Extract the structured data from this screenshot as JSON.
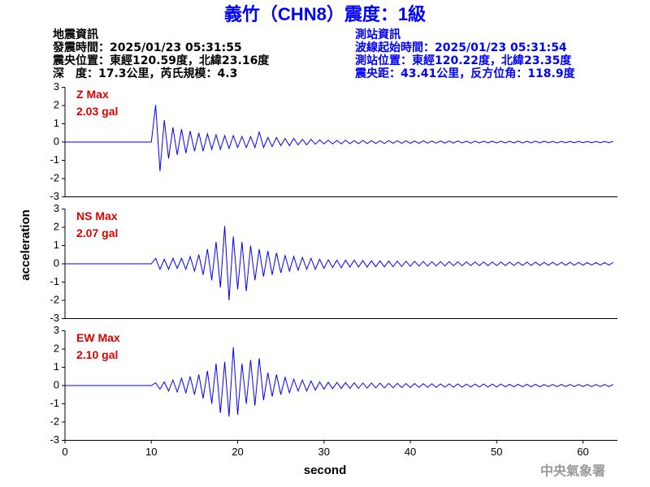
{
  "header": {
    "title": "義竹（CHN8）震度：1級",
    "left_info": [
      "地震資訊",
      "發震時間：2025/01/23 05:31:55",
      "震央位置：東經120.59度，北緯23.16度",
      "深　度：17.3公里，芮氏規模：4.3"
    ],
    "right_info": [
      "測站資訊",
      "波線起始時間：2025/01/23 05:31:54",
      "測站位置：東經120.22度，北緯23.35度",
      "震央距：43.41公里，反方位角：118.9度"
    ]
  },
  "axes": {
    "xlabel": "second",
    "ylabel": "acceleration"
  },
  "footer": "中央氣象署",
  "chart_data": [
    {
      "type": "line",
      "annotations": [
        "Z Max",
        "2.03 gal"
      ],
      "annotation_color": "#e00000",
      "color": "#0000ff",
      "xlim": [
        0,
        64
      ],
      "ylim": [
        -3,
        3
      ],
      "yticks": [
        -3,
        -2,
        -1,
        0,
        1,
        2,
        3
      ],
      "x": [
        0,
        0.5,
        1,
        1.5,
        2,
        2.5,
        3,
        3.5,
        4,
        4.5,
        5,
        5.5,
        6,
        6.5,
        7,
        7.5,
        8,
        8.5,
        9,
        9.5,
        10,
        10.5,
        11,
        11.5,
        12,
        12.5,
        13,
        13.5,
        14,
        14.5,
        15,
        15.5,
        16,
        16.5,
        17,
        17.5,
        18,
        18.5,
        19,
        19.5,
        20,
        20.5,
        21,
        21.5,
        22,
        22.5,
        23,
        23.5,
        24,
        24.5,
        25,
        25.5,
        26,
        26.5,
        27,
        27.5,
        28,
        28.5,
        29,
        29.5,
        30,
        30.5,
        31,
        31.5,
        32,
        32.5,
        33,
        33.5,
        34,
        34.5,
        35,
        35.5,
        36,
        36.5,
        37,
        37.5,
        38,
        38.5,
        39,
        39.5,
        40,
        40.5,
        41,
        41.5,
        42,
        42.5,
        43,
        43.5,
        44,
        44.5,
        45,
        45.5,
        46,
        46.5,
        47,
        47.5,
        48,
        48.5,
        49,
        49.5,
        50,
        50.5,
        51,
        51.5,
        52,
        52.5,
        53,
        53.5,
        54,
        54.5,
        55,
        55.5,
        56,
        56.5,
        57,
        57.5,
        58,
        58.5,
        59,
        59.5,
        60,
        60.5,
        61,
        61.5,
        62,
        62.5,
        63,
        63.5
      ],
      "values": [
        0,
        0,
        0,
        0,
        0,
        0,
        0,
        0,
        0,
        0,
        0,
        0,
        0,
        0,
        0,
        0,
        0,
        0,
        0,
        0,
        0,
        2.03,
        -1.6,
        1.2,
        -0.9,
        0.8,
        -0.7,
        0.7,
        -0.6,
        0.6,
        -0.5,
        0.5,
        -0.5,
        0.45,
        -0.4,
        0.4,
        -0.4,
        0.35,
        -0.35,
        0.35,
        -0.3,
        0.3,
        -0.3,
        0.3,
        -0.3,
        0.55,
        -0.3,
        0.25,
        -0.25,
        0.25,
        -0.2,
        0.2,
        -0.2,
        0.2,
        -0.15,
        0.15,
        -0.15,
        0.15,
        -0.12,
        0.12,
        -0.1,
        0.1,
        -0.1,
        0.09,
        -0.1,
        0.1,
        -0.09,
        0.08,
        -0.09,
        0.09,
        -0.08,
        0.08,
        -0.08,
        0.07,
        -0.08,
        0.08,
        -0.07,
        0.07,
        -0.07,
        0.07,
        -0.07,
        0.06,
        -0.07,
        0.07,
        -0.06,
        0.06,
        -0.06,
        0.06,
        -0.06,
        0.06,
        -0.06,
        0.06,
        -0.05,
        0.05,
        -0.06,
        0.05,
        -0.05,
        0.05,
        -0.05,
        0.05,
        -0.05,
        0.05,
        -0.05,
        0.05,
        -0.05,
        0.05,
        -0.05,
        0.05,
        -0.05,
        0.05,
        -0.05,
        0.05,
        -0.04,
        0.04,
        -0.05,
        0.04,
        -0.04,
        0.04,
        -0.04,
        0.04,
        -0.04,
        0.04,
        -0.04,
        0.04,
        -0.04,
        0.04,
        -0.04,
        0.04
      ]
    },
    {
      "type": "line",
      "annotations": [
        "NS Max",
        "2.07 gal"
      ],
      "annotation_color": "#e00000",
      "color": "#0000ff",
      "xlim": [
        0,
        64
      ],
      "ylim": [
        -3,
        3
      ],
      "yticks": [
        -3,
        -2,
        -1,
        0,
        1,
        2,
        3
      ],
      "x": [
        0,
        0.5,
        1,
        1.5,
        2,
        2.5,
        3,
        3.5,
        4,
        4.5,
        5,
        5.5,
        6,
        6.5,
        7,
        7.5,
        8,
        8.5,
        9,
        9.5,
        10,
        10.5,
        11,
        11.5,
        12,
        12.5,
        13,
        13.5,
        14,
        14.5,
        15,
        15.5,
        16,
        16.5,
        17,
        17.5,
        18,
        18.5,
        19,
        19.5,
        20,
        20.5,
        21,
        21.5,
        22,
        22.5,
        23,
        23.5,
        24,
        24.5,
        25,
        25.5,
        26,
        26.5,
        27,
        27.5,
        28,
        28.5,
        29,
        29.5,
        30,
        30.5,
        31,
        31.5,
        32,
        32.5,
        33,
        33.5,
        34,
        34.5,
        35,
        35.5,
        36,
        36.5,
        37,
        37.5,
        38,
        38.5,
        39,
        39.5,
        40,
        40.5,
        41,
        41.5,
        42,
        42.5,
        43,
        43.5,
        44,
        44.5,
        45,
        45.5,
        46,
        46.5,
        47,
        47.5,
        48,
        48.5,
        49,
        49.5,
        50,
        50.5,
        51,
        51.5,
        52,
        52.5,
        53,
        53.5,
        54,
        54.5,
        55,
        55.5,
        56,
        56.5,
        57,
        57.5,
        58,
        58.5,
        59,
        59.5,
        60,
        60.5,
        61,
        61.5,
        62,
        62.5,
        63,
        63.5
      ],
      "values": [
        0,
        0,
        0,
        0,
        0,
        0,
        0,
        0,
        0,
        0,
        0,
        0,
        0,
        0,
        0,
        0,
        0,
        0,
        0,
        0,
        0,
        0.3,
        -0.3,
        0.25,
        -0.3,
        0.3,
        -0.25,
        0.3,
        -0.3,
        0.4,
        -0.4,
        0.5,
        -0.6,
        0.8,
        -0.9,
        1.2,
        -1.3,
        2.07,
        -2.0,
        1.5,
        -1.4,
        1.2,
        -1.5,
        1.0,
        -0.9,
        0.8,
        -0.7,
        0.7,
        -0.6,
        0.6,
        -0.5,
        0.45,
        -0.4,
        0.4,
        -0.35,
        0.35,
        -0.3,
        0.3,
        -0.3,
        0.25,
        -0.25,
        0.22,
        -0.2,
        0.2,
        -0.22,
        0.2,
        -0.18,
        0.2,
        -0.18,
        0.18,
        -0.18,
        0.17,
        -0.16,
        0.16,
        -0.17,
        0.15,
        -0.15,
        0.15,
        -0.15,
        0.14,
        -0.14,
        0.14,
        -0.13,
        0.13,
        -0.13,
        0.12,
        -0.12,
        0.12,
        -0.12,
        0.12,
        -0.11,
        0.11,
        -0.11,
        0.11,
        -0.1,
        0.1,
        -0.1,
        0.1,
        -0.1,
        0.1,
        -0.1,
        0.1,
        -0.1,
        0.09,
        -0.09,
        0.09,
        -0.09,
        0.09,
        -0.09,
        0.09,
        -0.09,
        0.08,
        -0.08,
        0.08,
        -0.08,
        0.08,
        -0.08,
        0.08,
        -0.08,
        0.08,
        -0.08,
        0.07,
        -0.07,
        0.07,
        -0.07,
        0.07,
        -0.07,
        0.07
      ]
    },
    {
      "type": "line",
      "annotations": [
        "EW Max",
        "2.10 gal"
      ],
      "annotation_color": "#e00000",
      "color": "#0000ff",
      "xlim": [
        0,
        64
      ],
      "xticks": [
        0,
        10,
        20,
        30,
        40,
        50,
        60
      ],
      "ylim": [
        -3,
        3
      ],
      "yticks": [
        -3,
        -2,
        -1,
        0,
        1,
        2,
        3
      ],
      "x": [
        0,
        0.5,
        1,
        1.5,
        2,
        2.5,
        3,
        3.5,
        4,
        4.5,
        5,
        5.5,
        6,
        6.5,
        7,
        7.5,
        8,
        8.5,
        9,
        9.5,
        10,
        10.5,
        11,
        11.5,
        12,
        12.5,
        13,
        13.5,
        14,
        14.5,
        15,
        15.5,
        16,
        16.5,
        17,
        17.5,
        18,
        18.5,
        19,
        19.5,
        20,
        20.5,
        21,
        21.5,
        22,
        22.5,
        23,
        23.5,
        24,
        24.5,
        25,
        25.5,
        26,
        26.5,
        27,
        27.5,
        28,
        28.5,
        29,
        29.5,
        30,
        30.5,
        31,
        31.5,
        32,
        32.5,
        33,
        33.5,
        34,
        34.5,
        35,
        35.5,
        36,
        36.5,
        37,
        37.5,
        38,
        38.5,
        39,
        39.5,
        40,
        40.5,
        41,
        41.5,
        42,
        42.5,
        43,
        43.5,
        44,
        44.5,
        45,
        45.5,
        46,
        46.5,
        47,
        47.5,
        48,
        48.5,
        49,
        49.5,
        50,
        50.5,
        51,
        51.5,
        52,
        52.5,
        53,
        53.5,
        54,
        54.5,
        55,
        55.5,
        56,
        56.5,
        57,
        57.5,
        58,
        58.5,
        59,
        59.5,
        60,
        60.5,
        61,
        61.5,
        62,
        62.5,
        63,
        63.5
      ],
      "values": [
        0,
        0,
        0,
        0,
        0,
        0,
        0,
        0,
        0,
        0,
        0,
        0,
        0,
        0,
        0,
        0,
        0,
        0,
        0,
        0,
        0,
        0.15,
        -0.2,
        0.2,
        -0.3,
        0.3,
        -0.35,
        0.4,
        -0.4,
        0.5,
        -0.5,
        0.6,
        -0.7,
        0.8,
        -1.0,
        1.2,
        -1.5,
        1.3,
        -1.7,
        2.1,
        -1.6,
        1.2,
        -1.0,
        1.4,
        -1.1,
        1.5,
        -0.8,
        0.7,
        -0.6,
        0.6,
        -0.5,
        0.45,
        -0.4,
        0.35,
        -0.3,
        0.3,
        -0.3,
        0.25,
        -0.25,
        0.2,
        -0.2,
        0.18,
        -0.17,
        0.17,
        -0.16,
        0.16,
        -0.15,
        0.15,
        -0.15,
        0.14,
        -0.14,
        0.14,
        -0.13,
        0.13,
        -0.13,
        0.12,
        -0.12,
        0.12,
        -0.11,
        0.11,
        -0.11,
        0.11,
        -0.1,
        0.1,
        -0.1,
        0.1,
        -0.1,
        0.09,
        -0.09,
        0.09,
        -0.09,
        0.09,
        -0.09,
        0.08,
        -0.08,
        0.08,
        -0.08,
        0.08,
        -0.08,
        0.08,
        -0.08,
        0.08,
        -0.07,
        0.07,
        -0.07,
        0.07,
        -0.07,
        0.07,
        -0.07,
        0.07,
        -0.07,
        0.06,
        -0.06,
        0.06,
        -0.06,
        0.06,
        -0.06,
        0.06,
        -0.06,
        0.06,
        -0.06,
        0.06,
        -0.06,
        0.06,
        -0.06,
        0.06,
        -0.06,
        0.06
      ]
    }
  ]
}
